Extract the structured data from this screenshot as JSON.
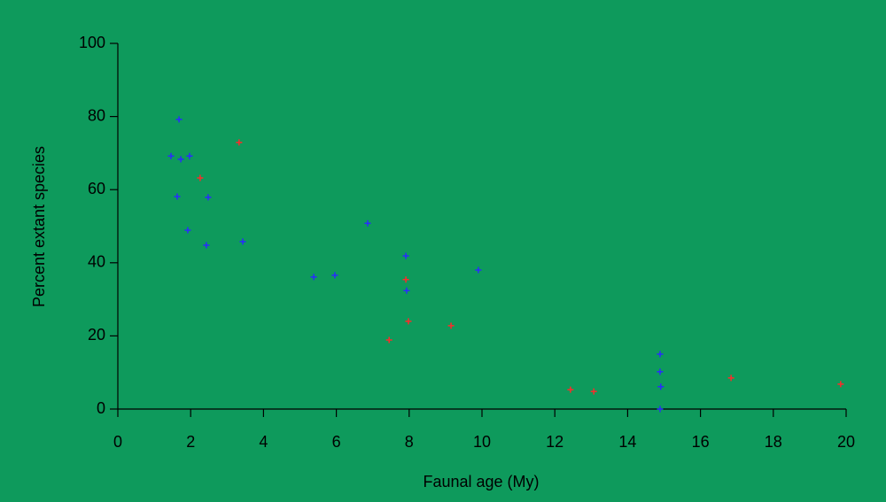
{
  "chart_data": {
    "type": "scatter",
    "xlabel": "Faunal age (My)",
    "ylabel": "Percent extant species",
    "xlim": [
      0,
      20
    ],
    "ylim": [
      0,
      100
    ],
    "xticks": [
      0,
      2,
      4,
      6,
      8,
      10,
      12,
      14,
      16,
      18,
      20
    ],
    "yticks": [
      0,
      20,
      40,
      60,
      80,
      100
    ],
    "series": [
      {
        "color": "#2a2aff",
        "x": [
          1.68,
          1.46,
          1.73,
          1.97,
          1.63,
          2.48,
          1.92,
          2.43,
          3.43,
          6.86,
          5.38,
          5.96,
          7.91,
          7.93,
          9.9,
          14.89,
          14.89,
          14.91,
          14.89
        ],
        "values": [
          79.2,
          69.2,
          68.3,
          69.2,
          58.1,
          57.9,
          48.9,
          44.8,
          45.8,
          50.8,
          36.1,
          36.6,
          41.9,
          32.4,
          38.0,
          15.0,
          10.2,
          6.1,
          0
        ]
      },
      {
        "color": "#ff2a2a",
        "x": [
          2.26,
          3.33,
          7.91,
          7.45,
          7.98,
          9.15,
          12.43,
          13.07,
          16.84,
          19.85
        ],
        "values": [
          63.2,
          72.9,
          35.4,
          18.9,
          24.0,
          22.8,
          5.3,
          4.8,
          8.5,
          6.8
        ]
      }
    ]
  }
}
